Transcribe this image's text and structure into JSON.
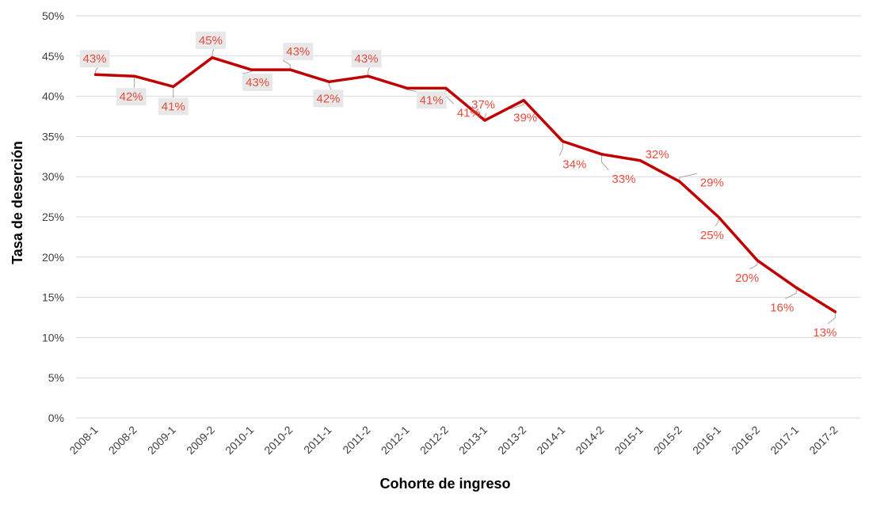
{
  "chart_data": {
    "type": "line",
    "title": "",
    "xlabel": "Cohorte de ingreso",
    "ylabel": "Tasa de deserción",
    "categories": [
      "2008-1",
      "2008-2",
      "2009-1",
      "2009-2",
      "2010-1",
      "2010-2",
      "2011-1",
      "2011-2",
      "2012-1",
      "2012-2",
      "2013-1",
      "2013-2",
      "2014-1",
      "2014-2",
      "2015-1",
      "2015-2",
      "2016-1",
      "2016-2",
      "2017-1",
      "2017-2"
    ],
    "series": [
      {
        "values": [
          42.7,
          42.5,
          41.2,
          44.8,
          43.3,
          43.3,
          41.8,
          42.5,
          41.0,
          41.0,
          37.0,
          39.5,
          34.4,
          32.8,
          32.0,
          29.4,
          25.0,
          19.6,
          16.2,
          13.2
        ],
        "data_labels": [
          "43%",
          "42%",
          "41%",
          "45%",
          "43%",
          "43%",
          "42%",
          "43%",
          "41%",
          "41%",
          "37%",
          "39%",
          "34%",
          "33%",
          "32%",
          "29%",
          "25%",
          "20%",
          "16%",
          "13%"
        ]
      }
    ],
    "y_ticks": [
      "0%",
      "5%",
      "10%",
      "15%",
      "20%",
      "25%",
      "30%",
      "35%",
      "40%",
      "45%",
      "50%"
    ],
    "ylim": [
      0,
      50
    ],
    "grid": true,
    "legend": "none",
    "colors": {
      "line": "#C00000",
      "label_text": "#E74C3C",
      "label_box": "#E8E8E8",
      "grid": "#D9D9D9",
      "leader": "#A6A6A6"
    }
  }
}
